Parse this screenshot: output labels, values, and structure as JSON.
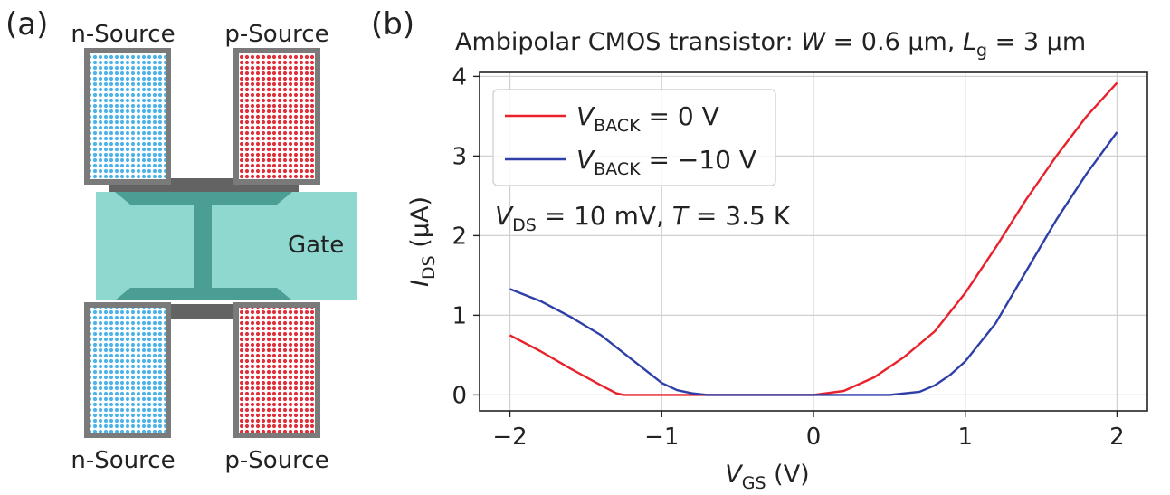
{
  "panels": {
    "a_label": "(a)",
    "b_label": "(b)"
  },
  "diagram": {
    "top_left_label": "n-Source",
    "top_right_label": "p-Source",
    "bottom_left_label": "n-Source",
    "bottom_right_label": "p-Source",
    "gate_label": "Gate",
    "colors": {
      "n_dots": "#4fb3e8",
      "p_dots": "#e0303c",
      "frame": "#7a7a7a",
      "channel": "#636363",
      "gate": "#8fd8cf",
      "gate_overlap": "#4b9e93"
    }
  },
  "chart_data": {
    "type": "line",
    "title": {
      "prefix": "Ambipolar CMOS transistor: ",
      "w_symbol": "W",
      "w_value": " = 0.6 µm, ",
      "l_symbol": "L",
      "l_sub": "g",
      "l_value": " = 3 µm"
    },
    "xlabel": {
      "symbol": "V",
      "sub": "GS",
      "unit": " (V)"
    },
    "ylabel": {
      "symbol": "I",
      "sub": "DS",
      "unit": " (µA)"
    },
    "xlim": [
      -2.2,
      2.2
    ],
    "ylim": [
      -0.2,
      4.05
    ],
    "xticks": [
      -2,
      -1,
      0,
      1,
      2
    ],
    "xtick_labels": [
      "−2",
      "−1",
      "0",
      "1",
      "2"
    ],
    "yticks": [
      0,
      1,
      2,
      3,
      4
    ],
    "ytick_labels": [
      "0",
      "1",
      "2",
      "3",
      "4"
    ],
    "grid": true,
    "legend_position": "top-left",
    "annotation": {
      "v_symbol": "V",
      "v_sub": "DS",
      "v_value": " = 10 mV, ",
      "t_symbol": "T",
      "t_value": " = 3.5 K"
    },
    "series": [
      {
        "name": {
          "symbol": "V",
          "sub": "BACK",
          "value": " = 0 V"
        },
        "color": "#e8212b",
        "x": [
          -2.0,
          -1.8,
          -1.6,
          -1.4,
          -1.3,
          -1.25,
          -1.1,
          -0.8,
          -0.5,
          -0.2,
          0.0,
          0.2,
          0.4,
          0.6,
          0.8,
          1.0,
          1.2,
          1.4,
          1.6,
          1.8,
          2.0
        ],
        "y": [
          0.75,
          0.55,
          0.33,
          0.12,
          0.02,
          0.0,
          0.0,
          0.0,
          0.0,
          0.0,
          0.0,
          0.05,
          0.22,
          0.48,
          0.8,
          1.28,
          1.85,
          2.45,
          3.0,
          3.5,
          3.92
        ]
      },
      {
        "name": {
          "symbol": "V",
          "sub": "BACK",
          "value": " = −10 V"
        },
        "color": "#2e3fa8",
        "x": [
          -2.0,
          -1.8,
          -1.6,
          -1.4,
          -1.2,
          -1.0,
          -0.9,
          -0.8,
          -0.7,
          -0.5,
          -0.2,
          0.0,
          0.3,
          0.5,
          0.7,
          0.8,
          0.9,
          1.0,
          1.2,
          1.4,
          1.6,
          1.8,
          2.0
        ],
        "y": [
          1.33,
          1.18,
          0.98,
          0.75,
          0.45,
          0.15,
          0.06,
          0.02,
          0.0,
          0.0,
          0.0,
          0.0,
          0.0,
          0.0,
          0.04,
          0.12,
          0.25,
          0.42,
          0.9,
          1.55,
          2.2,
          2.78,
          3.3
        ]
      }
    ]
  }
}
